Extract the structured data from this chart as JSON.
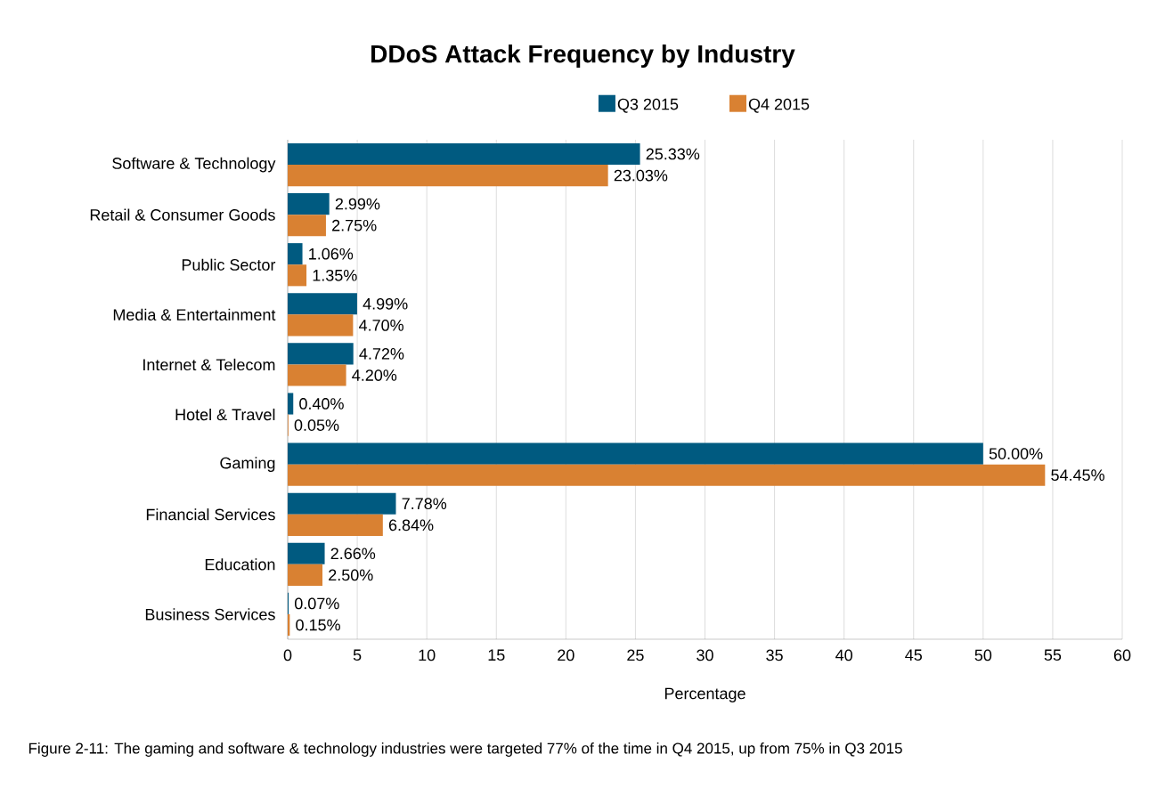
{
  "chart_data": {
    "type": "bar",
    "orientation": "horizontal",
    "title": "DDoS Attack Frequency by Industry",
    "xlabel": "Percentage",
    "categories": [
      "Software & Technology",
      "Retail & Consumer Goods",
      "Public Sector",
      "Media & Entertainment",
      "Internet & Telecom",
      "Hotel & Travel",
      "Gaming",
      "Financial Services",
      "Education",
      "Business Services"
    ],
    "series": [
      {
        "name": "Q3 2015",
        "color": "#005a80",
        "values": [
          25.33,
          2.99,
          1.06,
          4.99,
          4.72,
          0.4,
          50.0,
          7.78,
          2.66,
          0.07
        ],
        "value_labels": [
          "25.33%",
          "2.99%",
          "1.06%",
          "4.99%",
          "4.72%",
          "0.40%",
          "50.00%",
          "7.78%",
          "2.66%",
          "0.07%"
        ]
      },
      {
        "name": "Q4 2015",
        "color": "#d98132",
        "values": [
          23.03,
          2.75,
          1.35,
          4.7,
          4.2,
          0.05,
          54.45,
          6.84,
          2.5,
          0.15
        ],
        "value_labels": [
          "23.03%",
          "2.75%",
          "1.35%",
          "4.70%",
          "4.20%",
          "0.05%",
          "54.45%",
          "6.84%",
          "2.50%",
          "0.15%"
        ]
      }
    ],
    "xlim": [
      0,
      60
    ],
    "xticks": [
      0,
      5,
      10,
      15,
      20,
      25,
      30,
      35,
      40,
      45,
      50,
      55,
      60
    ],
    "grid": "x",
    "legend": "top",
    "annotations": [
      "Figure 2-11: The gaming and software & technology industries were targeted 77% of the time in Q4 2015, up from 75% in Q3 2015"
    ]
  }
}
